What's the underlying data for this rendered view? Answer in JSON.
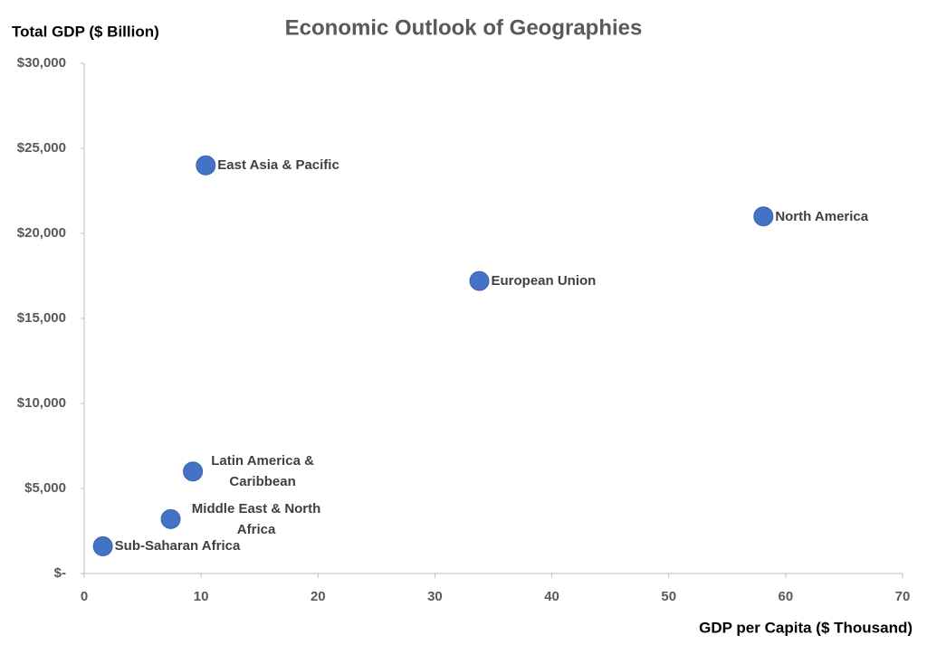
{
  "chart_data": {
    "type": "scatter",
    "title": "Economic Outlook of Geographies",
    "x_label": "GDP per Capita ($ Thousand)",
    "y_label": "Total GDP ($ Billion)",
    "point_labels": [
      "East Asia & Pacific",
      "North America",
      "European Union",
      "Latin America & Caribbean",
      "Middle East & North Africa",
      "Sub-Saharan Africa"
    ],
    "x": [
      10.4,
      58.1,
      33.8,
      9.3,
      7.4,
      1.6
    ],
    "values": [
      24000,
      21000,
      17200,
      6000,
      3200,
      1600
    ],
    "color": "#4472c4",
    "xlim": [
      0,
      70
    ],
    "xticks": [
      0,
      10,
      20,
      30,
      40,
      50,
      60,
      70
    ],
    "ylim": [
      0,
      30000
    ],
    "yticks": [
      {
        "value": 0,
        "label": "$-"
      },
      {
        "value": 5000,
        "label": "$5,000"
      },
      {
        "value": 10000,
        "label": "$10,000"
      },
      {
        "value": 15000,
        "label": "$15,000"
      },
      {
        "value": 20000,
        "label": "$20,000"
      },
      {
        "value": 25000,
        "label": "$25,000"
      },
      {
        "value": 30000,
        "label": "$30,000"
      }
    ],
    "grid": false
  }
}
